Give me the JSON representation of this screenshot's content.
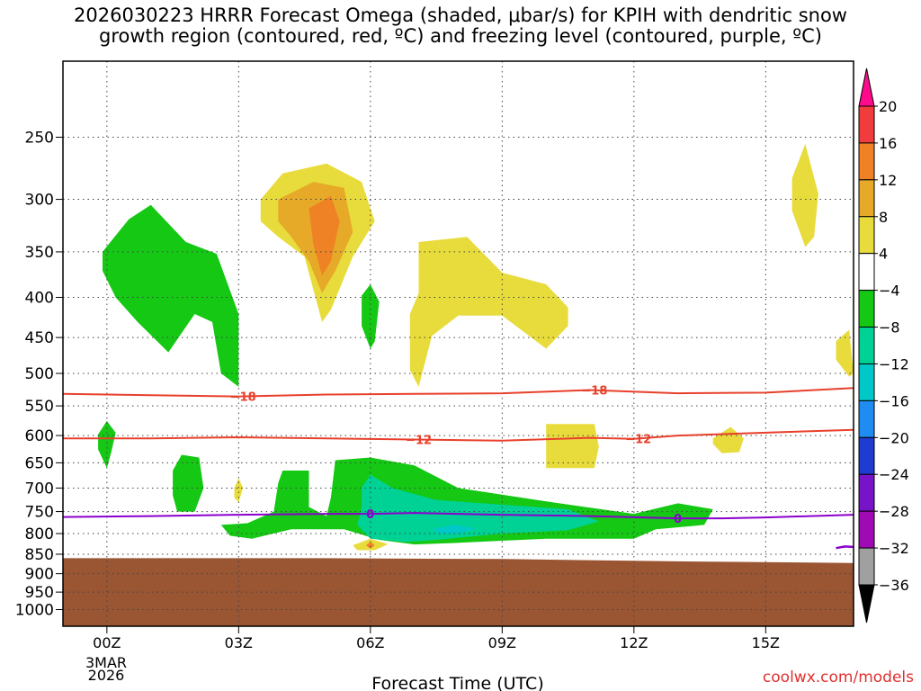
{
  "header": {
    "title_line1": "2026030223 HRRR Forecast Omega (shaded, μbar/s) for KPIH with dendritic snow",
    "title_line2": "growth region (contoured, red, ºC) and freezing level (contoured, purple, ºC)"
  },
  "credit": "coolwx.com/models",
  "colors": {
    "dendrite_contour": "#e8402c",
    "freezing_contour": "#8a00cc",
    "terrain": "#9a5533",
    "grid": "#555555"
  },
  "chart_data": {
    "type": "heatmap",
    "xlabel": "Forecast Time (UTC)",
    "ylabel": "",
    "x_unit": "forecast hour (UTC)",
    "xlim": [
      -1,
      17
    ],
    "y_log_pressure": true,
    "ylim": [
      1050,
      200
    ],
    "x_ticks": [
      {
        "x": 0,
        "label": "00Z"
      },
      {
        "x": 3,
        "label": "03Z"
      },
      {
        "x": 6,
        "label": "06Z"
      },
      {
        "x": 9,
        "label": "09Z"
      },
      {
        "x": 12,
        "label": "12Z"
      },
      {
        "x": 15,
        "label": "15Z"
      }
    ],
    "x_date_label": [
      "3MAR",
      "2026"
    ],
    "y_ticks": [
      250,
      300,
      350,
      400,
      450,
      500,
      550,
      600,
      650,
      700,
      750,
      800,
      850,
      900,
      950,
      1000
    ],
    "colorbar": {
      "labels": [
        "20",
        "16",
        "12",
        "8",
        "4",
        "−4",
        "−8",
        "−12",
        "−16",
        "−20",
        "−24",
        "−28",
        "−32",
        "−36"
      ],
      "colors": [
        "#ff0a8c",
        "#f03c3c",
        "#ef8224",
        "#e6aa28",
        "#e8dc3c",
        "#ffffff",
        "#14c814",
        "#00d296",
        "#00c8c8",
        "#1e8cf0",
        "#1e3cd2",
        "#7814c8",
        "#a00ab4",
        "#a0a0a0",
        "#000000"
      ]
    },
    "omega_regions": [
      {
        "color": "#14c814",
        "points": [
          [
            -0.1,
            350
          ],
          [
            0.5,
            318
          ],
          [
            1,
            305
          ],
          [
            1.8,
            340
          ],
          [
            2.5,
            352
          ],
          [
            3,
            420
          ],
          [
            3,
            520
          ],
          [
            2.6,
            500
          ],
          [
            2.4,
            430
          ],
          [
            2,
            420
          ],
          [
            1.4,
            470
          ],
          [
            0.7,
            430
          ],
          [
            0.2,
            400
          ],
          [
            -0.1,
            370
          ]
        ]
      },
      {
        "color": "#e8dc3c",
        "points": [
          [
            3.5,
            300
          ],
          [
            4,
            278
          ],
          [
            5,
            270
          ],
          [
            5.8,
            285
          ],
          [
            6.1,
            320
          ],
          [
            5.6,
            355
          ],
          [
            5.1,
            415
          ],
          [
            4.9,
            430
          ],
          [
            4.5,
            355
          ],
          [
            3.9,
            335
          ],
          [
            3.5,
            320
          ]
        ]
      },
      {
        "color": "#e6aa28",
        "points": [
          [
            3.9,
            300
          ],
          [
            4.7,
            285
          ],
          [
            5.4,
            290
          ],
          [
            5.6,
            330
          ],
          [
            5.2,
            370
          ],
          [
            4.9,
            395
          ],
          [
            4.6,
            360
          ],
          [
            4.2,
            335
          ],
          [
            3.9,
            320
          ]
        ]
      },
      {
        "color": "#ef8224",
        "points": [
          [
            4.6,
            308
          ],
          [
            5.1,
            297
          ],
          [
            5.3,
            320
          ],
          [
            5.1,
            360
          ],
          [
            4.9,
            375
          ],
          [
            4.7,
            342
          ]
        ]
      },
      {
        "color": "#e8dc3c",
        "points": [
          [
            7.1,
            340
          ],
          [
            8.2,
            335
          ],
          [
            9,
            372
          ],
          [
            10,
            385
          ],
          [
            10.5,
            412
          ],
          [
            10.5,
            435
          ],
          [
            10,
            465
          ],
          [
            9,
            422
          ],
          [
            8,
            422
          ],
          [
            7.4,
            448
          ],
          [
            7.1,
            520
          ],
          [
            6.9,
            495
          ],
          [
            6.9,
            420
          ],
          [
            7.1,
            395
          ]
        ]
      },
      {
        "color": "#14c814",
        "points": [
          [
            5.8,
            398
          ],
          [
            6,
            385
          ],
          [
            6.2,
            405
          ],
          [
            6.1,
            455
          ],
          [
            6,
            465
          ],
          [
            5.8,
            435
          ]
        ]
      },
      {
        "color": "#e8dc3c",
        "points": [
          [
            15.6,
            282
          ],
          [
            15.9,
            255
          ],
          [
            16.2,
            295
          ],
          [
            16.1,
            335
          ],
          [
            15.9,
            345
          ],
          [
            15.6,
            310
          ]
        ]
      },
      {
        "color": "#e8dc3c",
        "points": [
          [
            16.6,
            455
          ],
          [
            16.9,
            440
          ],
          [
            17,
            500
          ],
          [
            16.9,
            505
          ],
          [
            16.6,
            480
          ]
        ]
      },
      {
        "color": "#14c814",
        "points": [
          [
            -0.2,
            598
          ],
          [
            0,
            575
          ],
          [
            0.2,
            595
          ],
          [
            0.1,
            630
          ],
          [
            0,
            660
          ],
          [
            -0.2,
            625
          ]
        ]
      },
      {
        "color": "#e8dc3c",
        "points": [
          [
            10,
            580
          ],
          [
            11.1,
            580
          ],
          [
            11.2,
            620
          ],
          [
            11.1,
            660
          ],
          [
            10,
            660
          ]
        ]
      },
      {
        "color": "#e8dc3c",
        "points": [
          [
            13.8,
            605
          ],
          [
            14.2,
            585
          ],
          [
            14.5,
            605
          ],
          [
            14.4,
            630
          ],
          [
            14,
            632
          ],
          [
            13.8,
            615
          ]
        ]
      },
      {
        "color": "#14c814",
        "points": [
          [
            1.5,
            665
          ],
          [
            1.7,
            635
          ],
          [
            2.1,
            640
          ],
          [
            2.2,
            700
          ],
          [
            2.0,
            750
          ],
          [
            1.6,
            750
          ],
          [
            1.5,
            715
          ]
        ]
      },
      {
        "color": "#e8dc3c",
        "points": [
          [
            2.9,
            700
          ],
          [
            3,
            680
          ],
          [
            3.1,
            700
          ],
          [
            3,
            730
          ],
          [
            2.9,
            720
          ]
        ]
      },
      {
        "color": "#14c814",
        "points": [
          [
            2.6,
            780
          ],
          [
            3.2,
            776
          ],
          [
            3.8,
            750
          ],
          [
            3.9,
            690
          ],
          [
            4,
            665
          ],
          [
            4.6,
            665
          ],
          [
            4.6,
            740
          ],
          [
            5,
            760
          ],
          [
            5.1,
            720
          ],
          [
            5.2,
            645
          ],
          [
            6,
            640
          ],
          [
            7,
            655
          ],
          [
            8,
            700
          ],
          [
            10,
            728
          ],
          [
            12,
            755
          ],
          [
            13,
            732
          ],
          [
            13.8,
            745
          ],
          [
            13.6,
            780
          ],
          [
            12.5,
            790
          ],
          [
            12,
            812
          ],
          [
            10,
            812
          ],
          [
            8,
            822
          ],
          [
            7,
            826
          ],
          [
            6.2,
            815
          ],
          [
            5.4,
            790
          ],
          [
            4.2,
            790
          ],
          [
            3.3,
            812
          ],
          [
            2.8,
            805
          ]
        ]
      },
      {
        "color": "#00d296",
        "points": [
          [
            5.8,
            700
          ],
          [
            6,
            673
          ],
          [
            6.5,
            700
          ],
          [
            7.5,
            725
          ],
          [
            9,
            735
          ],
          [
            10.5,
            745
          ],
          [
            11.2,
            772
          ],
          [
            10.5,
            792
          ],
          [
            9,
            800
          ],
          [
            7.5,
            815
          ],
          [
            6.8,
            820
          ],
          [
            6,
            812
          ],
          [
            5.7,
            780
          ],
          [
            5.8,
            740
          ]
        ]
      },
      {
        "color": "#00c8c8",
        "points": [
          [
            7.4,
            790
          ],
          [
            7.9,
            780
          ],
          [
            8.4,
            788
          ],
          [
            8,
            800
          ],
          [
            7.6,
            800
          ]
        ]
      },
      {
        "color": "#e8dc3c",
        "points": [
          [
            5.6,
            828
          ],
          [
            6,
            812
          ],
          [
            6.4,
            825
          ],
          [
            6.1,
            840
          ],
          [
            5.7,
            840
          ]
        ]
      },
      {
        "color": "#ef8224",
        "points": [
          [
            5.9,
            828
          ],
          [
            6,
            820
          ],
          [
            6.1,
            828
          ],
          [
            6,
            836
          ]
        ]
      }
    ],
    "dendritic_contours": [
      {
        "label": "−18",
        "label_x": [
          3.1,
          11.1
        ],
        "points": [
          [
            -1,
            531
          ],
          [
            1,
            533
          ],
          [
            3,
            535
          ],
          [
            5,
            532
          ],
          [
            7,
            531
          ],
          [
            9,
            530
          ],
          [
            11,
            525
          ],
          [
            13,
            530
          ],
          [
            15,
            529
          ],
          [
            17,
            522
          ]
        ]
      },
      {
        "label": "−12",
        "label_x": [
          7.1,
          12.1
        ],
        "points": [
          [
            -1,
            605
          ],
          [
            1,
            605
          ],
          [
            3,
            603
          ],
          [
            5,
            605
          ],
          [
            7,
            607
          ],
          [
            9,
            609
          ],
          [
            11,
            604
          ],
          [
            12,
            606
          ],
          [
            13,
            600
          ],
          [
            15,
            595
          ],
          [
            17,
            590
          ]
        ]
      }
    ],
    "freezing_contours": [
      {
        "label": "0",
        "label_x": [
          6.0,
          13.0
        ],
        "points": [
          [
            -1,
            762
          ],
          [
            1,
            760
          ],
          [
            3,
            757
          ],
          [
            5,
            755
          ],
          [
            6,
            755
          ],
          [
            7,
            753
          ],
          [
            9,
            757
          ],
          [
            11,
            760
          ],
          [
            13,
            765
          ],
          [
            14,
            765
          ],
          [
            15,
            763
          ],
          [
            17,
            757
          ]
        ]
      }
    ],
    "freezing_hook": {
      "points": [
        [
          16.6,
          835
        ],
        [
          16.8,
          831
        ],
        [
          17,
          832
        ]
      ]
    },
    "terrain_surface": [
      [
        -1,
        860
      ],
      [
        5,
        860
      ],
      [
        9,
        862
      ],
      [
        13,
        868
      ],
      [
        17,
        872
      ]
    ]
  }
}
